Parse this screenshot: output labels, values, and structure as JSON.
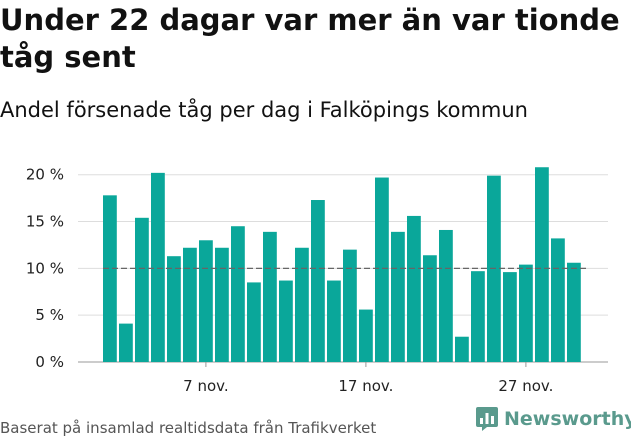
{
  "header": {
    "title": "Under 22 dagar var mer än var tionde tåg sent",
    "subtitle": "Andel försenade tåg per dag i Falköpings kommun"
  },
  "footer": {
    "source": "Baserat på insamlad realtidsdata från Trafikverket",
    "brand": "Newsworthy"
  },
  "colors": {
    "bar": "#0aa79a",
    "reference_line": "#666666",
    "grid": "#dddddd",
    "brand": "#5a9a8d"
  },
  "chart_data": {
    "type": "bar",
    "x_start_day": 1,
    "values": [
      17.8,
      4.1,
      15.4,
      20.2,
      11.3,
      12.2,
      13.0,
      12.2,
      14.5,
      8.5,
      13.9,
      8.7,
      12.2,
      17.3,
      8.7,
      12.0,
      5.6,
      19.7,
      13.9,
      15.6,
      11.4,
      14.1,
      2.7,
      9.7,
      19.9,
      9.6,
      10.4,
      20.8,
      13.2,
      10.6
    ],
    "reference_line": 10,
    "ylim": [
      0,
      22
    ],
    "yticks": [
      0,
      5,
      10,
      15,
      20
    ],
    "ytick_labels": [
      "0 %",
      "5 %",
      "10 %",
      "15 %",
      "20 %"
    ],
    "xticks": [
      {
        "day": 7,
        "label": "7 nov."
      },
      {
        "day": 17,
        "label": "17 nov."
      },
      {
        "day": 27,
        "label": "27 nov."
      }
    ],
    "grid": true
  }
}
